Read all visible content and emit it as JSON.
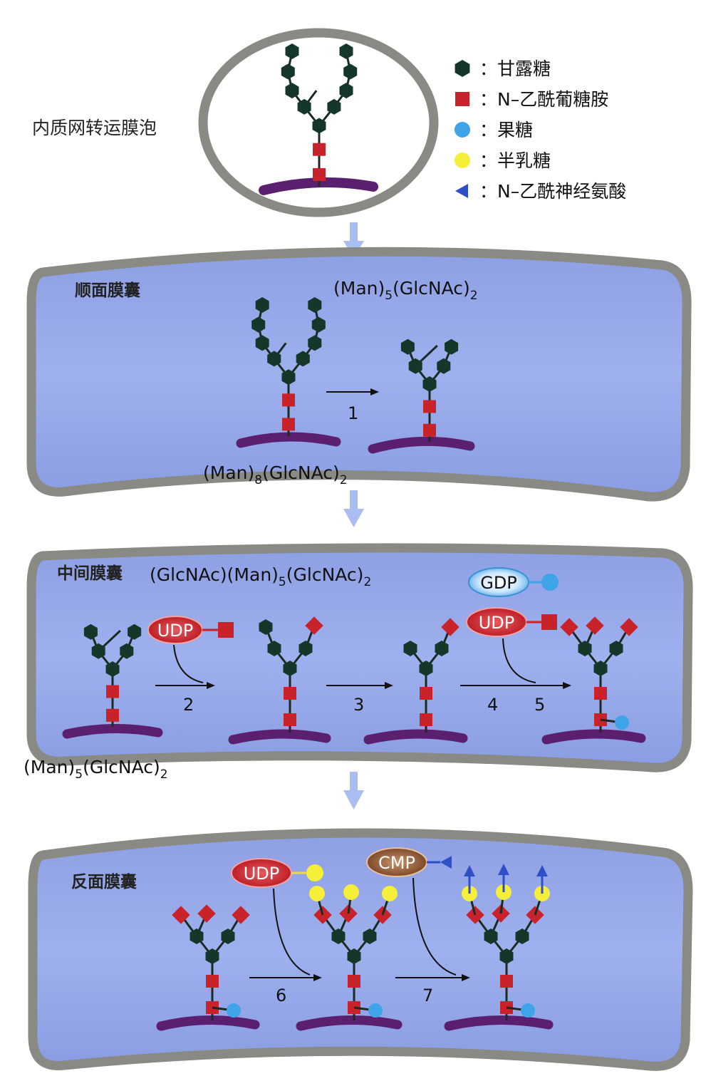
{
  "vesicle_label": "内质网转运膜泡",
  "legend": [
    {
      "shape": "hexagon",
      "color": "#14372a",
      "text": "：甘露糖"
    },
    {
      "shape": "square",
      "color": "#c8232a",
      "text": "：N–乙酰葡糖胺"
    },
    {
      "shape": "circle",
      "color": "#3fa3e8",
      "text": "：果糖"
    },
    {
      "shape": "circle",
      "color": "#f6ef3a",
      "text": "：半乳糖"
    },
    {
      "shape": "triangle",
      "color": "#2f4fc8",
      "text": "：N–乙酰神经氨酸"
    }
  ],
  "cis": {
    "title": "顺面膜囊",
    "formula_top": {
      "base": "(Man)",
      "sub1": "5",
      "mid": "(GlcNAc)",
      "sub2": "2"
    },
    "formula_bottom": {
      "base": "(Man)",
      "sub1": "8",
      "mid": "(GlcNAc)",
      "sub2": "2"
    },
    "step1": "1"
  },
  "medial": {
    "title": "中间膜囊",
    "formula_top": {
      "pre": "(GlcNAc)(Man)",
      "sub1": "5",
      "mid": "(GlcNAc)",
      "sub2": "2"
    },
    "formula_bottom": {
      "base": "(Man)",
      "sub1": "5",
      "mid": "(GlcNAc)",
      "sub2": "2"
    },
    "donor_udp": "UDP",
    "donor_gdp": "GDP",
    "donor_udp2": "UDP",
    "step2": "2",
    "step3": "3",
    "step4": "4",
    "step5": "5"
  },
  "trans": {
    "title": "反面膜囊",
    "donor_udp": "UDP",
    "donor_cmp": "CMP",
    "step6": "6",
    "step7": "7"
  },
  "colors": {
    "mannose": "#14372a",
    "glcnac": "#c8232a",
    "fucose": "#3fa3e8",
    "galactose": "#f6ef3a",
    "sialic": "#2f4fc8",
    "membrane": "#5a1f6e",
    "cisterna_fill": "#8fa3e6",
    "cisterna_border": "#8a8a84",
    "flow_arrow": "#a9bdf0"
  }
}
